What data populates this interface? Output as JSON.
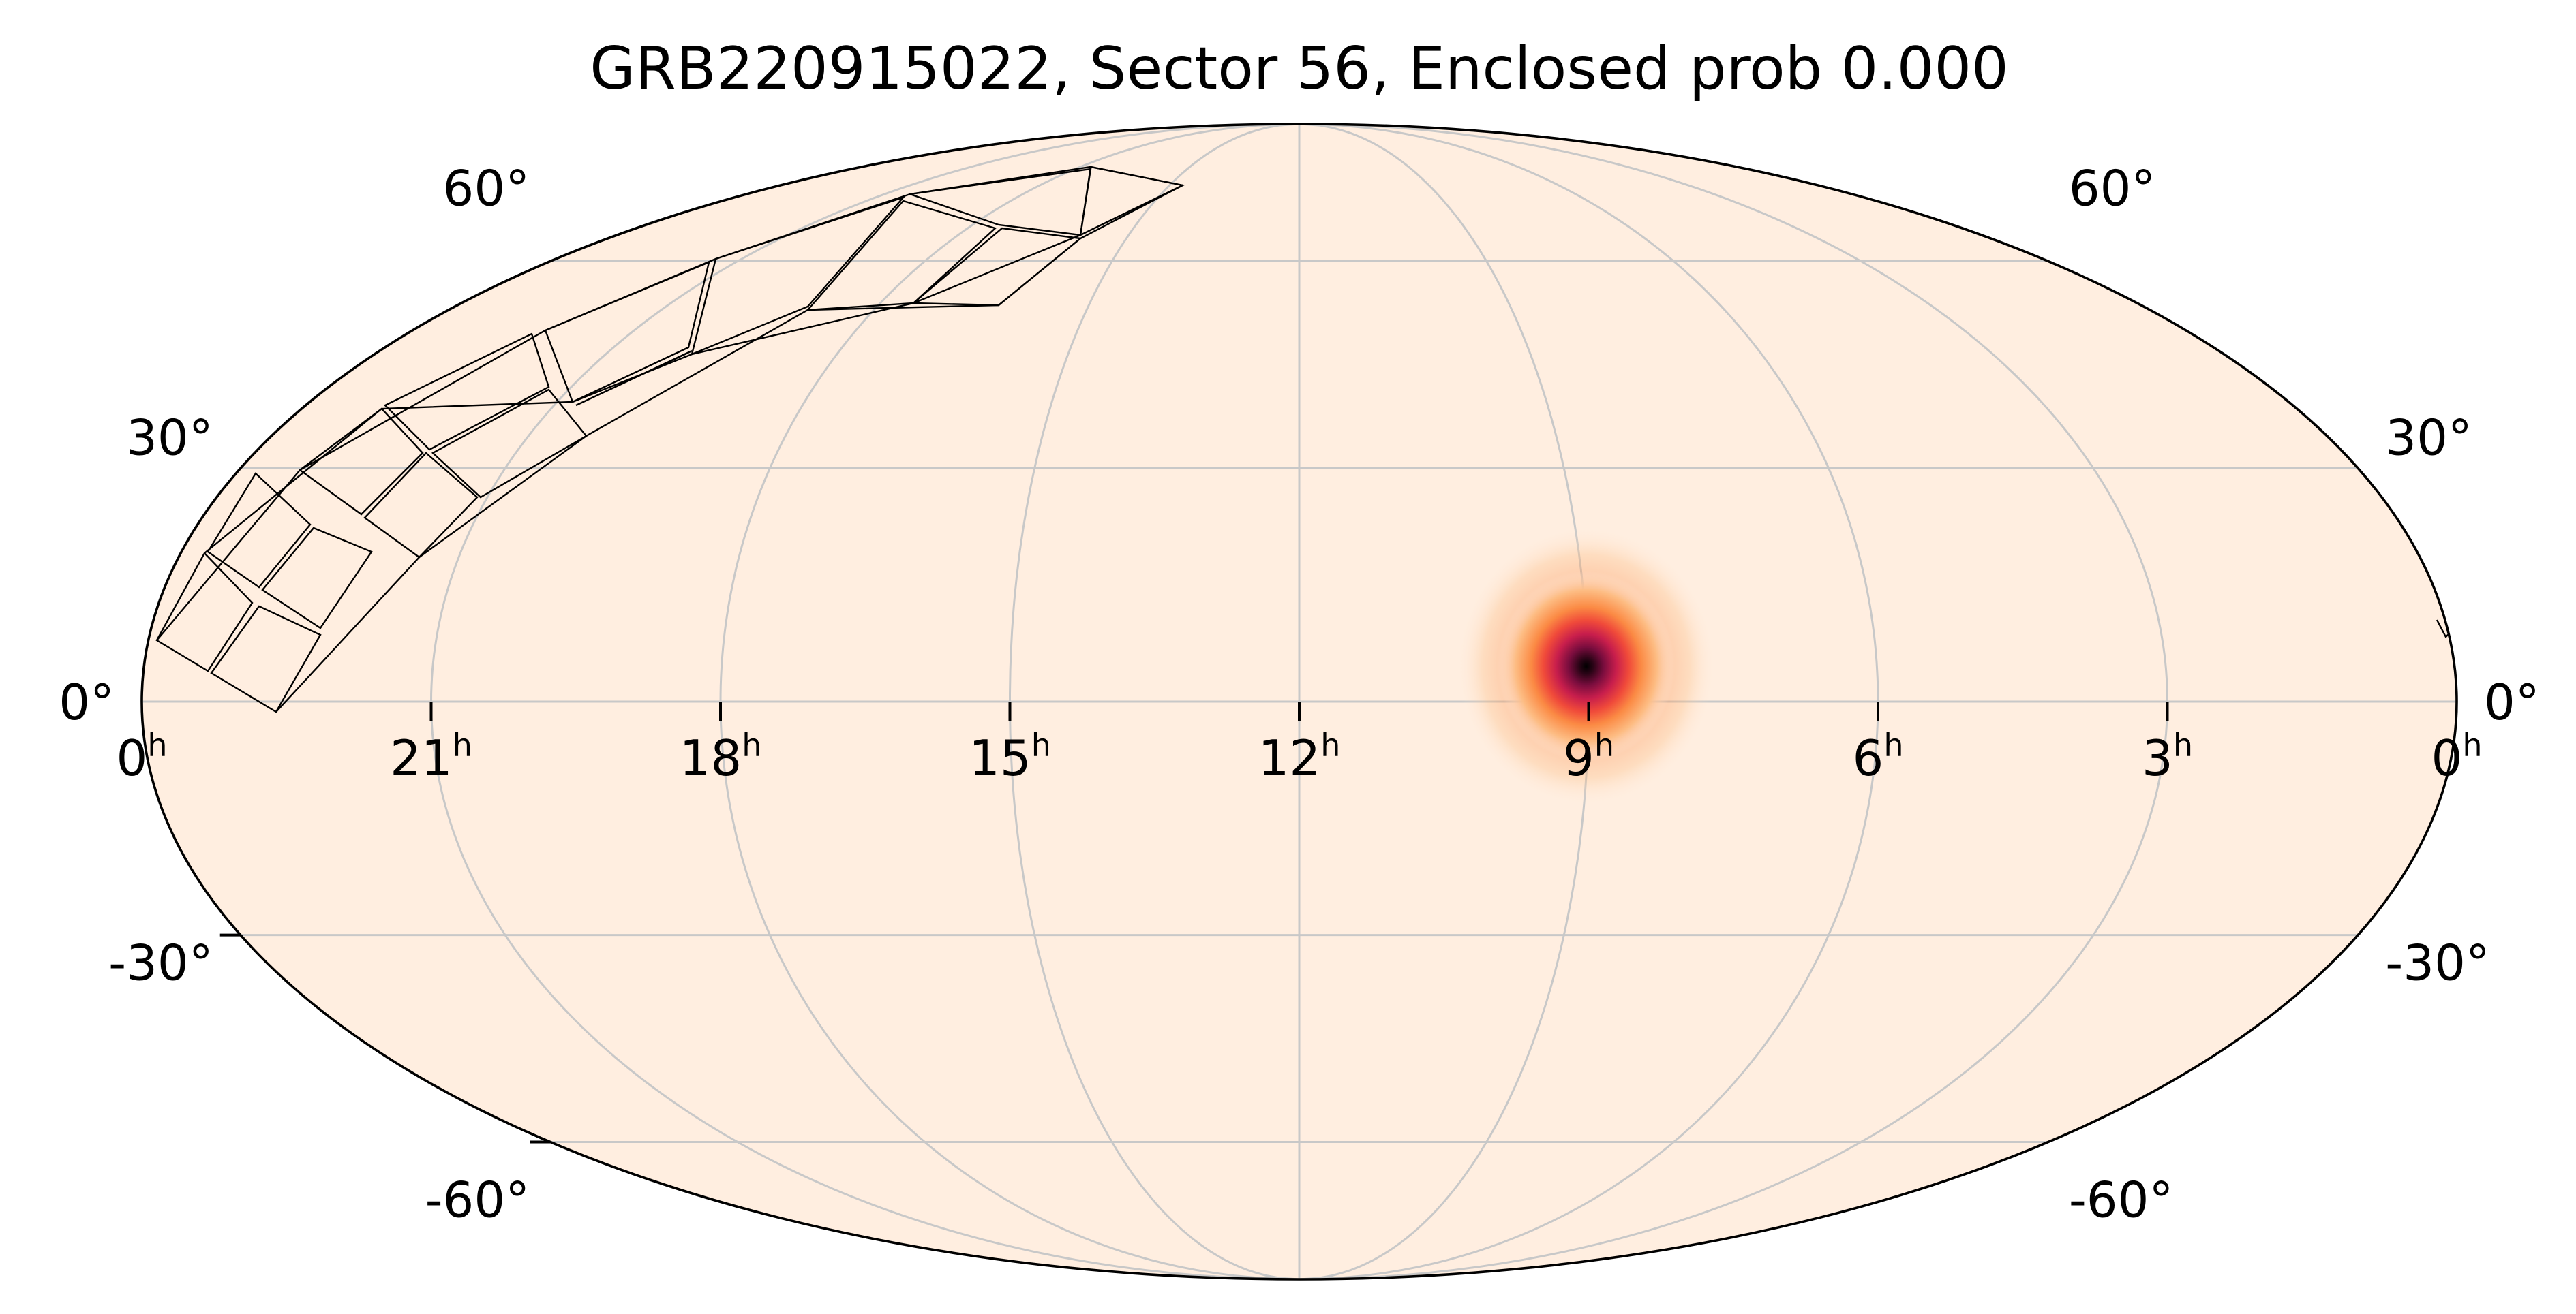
{
  "title": "GRB220915022, Sector 56, Enclosed prob 0.000",
  "projection": "mollweide",
  "ra_labels": [
    {
      "value": "0",
      "unit": "h",
      "ra_hours": 24
    },
    {
      "value": "21",
      "unit": "h",
      "ra_hours": 21
    },
    {
      "value": "18",
      "unit": "h",
      "ra_hours": 18
    },
    {
      "value": "15",
      "unit": "h",
      "ra_hours": 15
    },
    {
      "value": "12",
      "unit": "h",
      "ra_hours": 12
    },
    {
      "value": "9",
      "unit": "h",
      "ra_hours": 9
    },
    {
      "value": "6",
      "unit": "h",
      "ra_hours": 6
    },
    {
      "value": "3",
      "unit": "h",
      "ra_hours": 3
    },
    {
      "value": "0",
      "unit": "h",
      "ra_hours": 0
    }
  ],
  "dec_labels": [
    {
      "text": "60°",
      "dec_deg": 60
    },
    {
      "text": "30°",
      "dec_deg": 30
    },
    {
      "text": "0°",
      "dec_deg": 0
    },
    {
      "text": "-30°",
      "dec_deg": -30
    },
    {
      "text": "-60°",
      "dec_deg": -60
    }
  ],
  "colors": {
    "background": "#ffeee0",
    "grid": "#c8c8c8",
    "outline": "#000000",
    "colormap": [
      "#ffeee0",
      "#fdbd84",
      "#fb8a44",
      "#f04a3a",
      "#c81e4c",
      "#7a0d3e",
      "#2a0416",
      "#000000"
    ]
  },
  "probability_peak": {
    "ra_hours": 9.0,
    "dec_deg": 3.5
  }
}
